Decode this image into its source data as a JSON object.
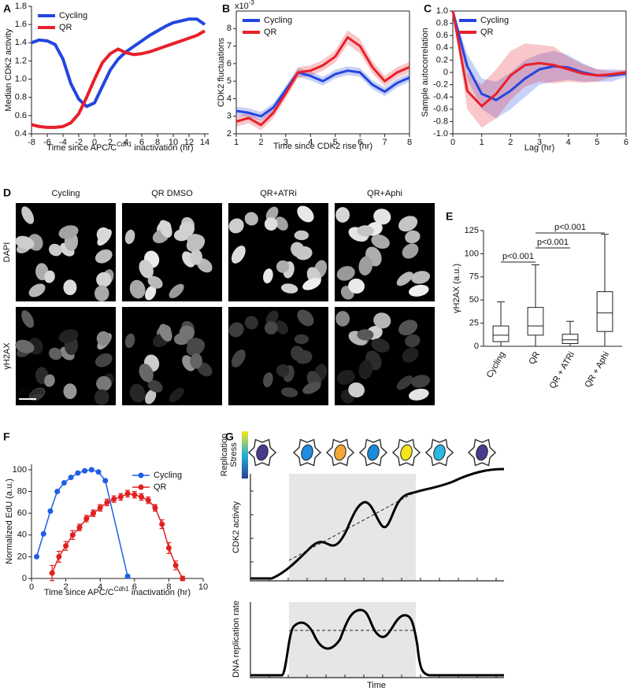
{
  "chart_data": [
    {
      "type": "line",
      "panel": "A",
      "ylabel": "Median CDK2 activity",
      "xlabel": {
        "text": "Time since APC/C",
        "sup": "Cdh1",
        "after": "inactivation (hr)"
      },
      "xlim": [
        -8,
        14.5
      ],
      "ylim": [
        0.4,
        1.8
      ],
      "xticks": [
        -8,
        -6,
        -4,
        -2,
        0,
        2,
        4,
        6,
        8,
        10,
        12,
        14
      ],
      "yticks": [
        0.4,
        0.6,
        0.8,
        {
          "value": 1,
          "label": "1.0"
        },
        1.2,
        1.4,
        1.6,
        1.8
      ],
      "box": false,
      "legend": "upper left",
      "line_width": 4,
      "series": [
        {
          "name": "Cycling",
          "color": "#2346e0",
          "x": [
            -8,
            -7,
            -6,
            -5,
            -4,
            -3,
            -2,
            -1,
            0,
            1,
            2,
            3,
            4,
            5,
            6,
            7,
            8,
            9,
            10,
            11,
            12,
            13,
            14
          ],
          "values": [
            1.4,
            1.43,
            1.42,
            1.38,
            1.22,
            0.95,
            0.78,
            0.7,
            0.74,
            0.92,
            1.1,
            1.22,
            1.3,
            1.36,
            1.42,
            1.48,
            1.53,
            1.58,
            1.62,
            1.64,
            1.66,
            1.66,
            1.6
          ]
        },
        {
          "name": "QR",
          "color": "#e8202a",
          "x": [
            -8,
            -7,
            -6,
            -5,
            -4,
            -3,
            -2,
            -1,
            0,
            1,
            2,
            3,
            4,
            5,
            6,
            7,
            8,
            9,
            10,
            11,
            12,
            13,
            14
          ],
          "values": [
            0.5,
            0.48,
            0.47,
            0.47,
            0.48,
            0.52,
            0.62,
            0.8,
            1.0,
            1.18,
            1.28,
            1.33,
            1.29,
            1.27,
            1.28,
            1.3,
            1.33,
            1.36,
            1.39,
            1.42,
            1.45,
            1.48,
            1.53
          ]
        }
      ]
    },
    {
      "type": "line",
      "panel": "B",
      "ylabel": "CDK2 fluctuations",
      "xlabel": "Time since CDK2 rise (hr)",
      "y_multiplier": {
        "text": "x10",
        "sup": "-3"
      },
      "xlim": [
        1,
        8
      ],
      "ylim": [
        2,
        9
      ],
      "xticks": [
        1,
        2,
        3,
        4,
        5,
        6,
        7,
        8
      ],
      "yticks": [
        2,
        3,
        4,
        5,
        6,
        7,
        8
      ],
      "box": true,
      "legend": "upper left",
      "error_style": "band",
      "line_width": 3,
      "series": [
        {
          "name": "Cycling",
          "color": "#2346e0",
          "x": [
            1,
            1.5,
            2,
            2.5,
            3,
            3.5,
            4,
            4.5,
            5,
            5.5,
            6,
            6.5,
            7,
            7.5,
            8
          ],
          "values": [
            3.3,
            3.2,
            3.0,
            3.5,
            4.5,
            5.5,
            5.3,
            5.0,
            5.4,
            5.6,
            5.5,
            4.8,
            4.4,
            4.9,
            5.2
          ],
          "errors": [
            0.25,
            0.25,
            0.25,
            0.25,
            0.25,
            0.25,
            0.25,
            0.25,
            0.25,
            0.25,
            0.25,
            0.25,
            0.25,
            0.25,
            0.25
          ]
        },
        {
          "name": "QR",
          "color": "#e8202a",
          "x": [
            1,
            1.5,
            2,
            2.5,
            3,
            3.5,
            4,
            4.5,
            5,
            5.5,
            6,
            6.5,
            7,
            7.5,
            8
          ],
          "values": [
            2.7,
            2.9,
            2.5,
            3.2,
            4.3,
            5.5,
            5.6,
            5.9,
            6.4,
            7.5,
            7.0,
            5.8,
            5.0,
            5.5,
            5.8
          ],
          "errors": [
            0.3,
            0.3,
            0.3,
            0.3,
            0.3,
            0.3,
            0.3,
            0.3,
            0.35,
            0.4,
            0.4,
            0.35,
            0.3,
            0.3,
            0.3
          ]
        }
      ]
    },
    {
      "type": "line",
      "panel": "C",
      "ylabel": "Sample autocorrelation",
      "xlabel": "Lag (hr)",
      "xlim": [
        0,
        6
      ],
      "ylim": [
        -1,
        1
      ],
      "xticks": [
        0,
        1,
        2,
        3,
        4,
        5,
        6
      ],
      "yticks": [
        {
          "value": -1,
          "label": "-1.0"
        },
        -0.8,
        -0.6,
        -0.4,
        -0.2,
        0,
        0.2,
        0.4,
        0.6,
        0.8,
        {
          "value": 1,
          "label": "1.0"
        }
      ],
      "box": true,
      "legend": "upper left",
      "error_style": "band",
      "line_width": 3,
      "series": [
        {
          "name": "Cycling",
          "color": "#2346e0",
          "x": [
            0,
            0.5,
            1,
            1.5,
            2,
            2.5,
            3,
            3.5,
            4,
            4.5,
            5,
            5.5,
            6
          ],
          "values": [
            1.0,
            0.1,
            -0.35,
            -0.45,
            -0.3,
            -0.1,
            0.05,
            0.1,
            0.08,
            0.0,
            -0.05,
            -0.05,
            -0.02
          ],
          "errors": [
            0,
            0.2,
            0.25,
            0.3,
            0.3,
            0.3,
            0.25,
            0.25,
            0.2,
            0.15,
            0.1,
            0.1,
            0.05
          ]
        },
        {
          "name": "QR",
          "color": "#e8202a",
          "x": [
            0,
            0.5,
            1,
            1.5,
            2,
            2.5,
            3,
            3.5,
            4,
            4.5,
            5,
            5.5,
            6
          ],
          "values": [
            1.0,
            -0.3,
            -0.55,
            -0.35,
            -0.05,
            0.12,
            0.15,
            0.12,
            0.05,
            -0.02,
            -0.05,
            -0.03,
            0.0
          ],
          "errors": [
            0,
            0.3,
            0.35,
            0.4,
            0.4,
            0.35,
            0.3,
            0.3,
            0.2,
            0.15,
            0.1,
            0.05,
            0.05
          ]
        }
      ]
    },
    {
      "type": "image-grid",
      "panel": "D",
      "columns": [
        "Cycling",
        "QR DMSO",
        "QR+ATRi",
        "QR+Aphi"
      ],
      "rows": [
        "DAPI",
        "γH2AX"
      ],
      "scale_bar": "20 μm"
    },
    {
      "type": "box",
      "panel": "E",
      "ylabel": "γH2AX (a.u.)",
      "categories": [
        "Cycling",
        "QR",
        "QR + ATRi",
        "QR + Aphi"
      ],
      "ylim": [
        0,
        125
      ],
      "yticks": [
        0,
        25,
        50,
        75,
        100,
        125
      ],
      "boxes": {
        "min": [
          0,
          0,
          0,
          0
        ],
        "q1": [
          5,
          12,
          3,
          16
        ],
        "median": [
          12,
          22,
          7,
          36
        ],
        "q3": [
          22,
          42,
          13,
          59
        ],
        "max": [
          48,
          88,
          27,
          121
        ]
      },
      "annotations": [
        {
          "text": "p<0.001",
          "from": 0,
          "to": 1
        },
        {
          "text": "p<0.001",
          "from": 1,
          "to": 2
        },
        {
          "text": "p<0.001",
          "from": 1,
          "to": 3
        }
      ]
    },
    {
      "type": "line",
      "panel": "F",
      "ylabel": "Normalized EdU (a.u.)",
      "xlabel": {
        "text": "Time since APC/C",
        "sup": "Cdh1",
        "after": "inactivation (hr)"
      },
      "xlim": [
        0,
        10
      ],
      "ylim": [
        0,
        105
      ],
      "xticks": [
        0,
        2,
        4,
        6,
        8,
        10
      ],
      "yticks": [
        0,
        20,
        40,
        60,
        80,
        100
      ],
      "box": false,
      "legend": "upper right",
      "error_style": "bars",
      "markers": true,
      "line_width": 1.5,
      "series": [
        {
          "name": "Cycling",
          "color": "#1f5fe6",
          "x": [
            0.3,
            0.7,
            1.1,
            1.5,
            1.9,
            2.3,
            2.7,
            3.1,
            3.5,
            3.9,
            4.3,
            5.6
          ],
          "values": [
            20,
            41,
            62,
            80,
            88,
            93,
            97,
            99,
            100,
            98,
            90,
            2
          ],
          "errors": [
            1,
            1,
            1,
            1,
            1,
            1,
            1,
            1,
            1,
            1,
            1,
            1
          ]
        },
        {
          "name": "QR",
          "color": "#e02020",
          "x": [
            1.2,
            1.6,
            2.0,
            2.4,
            2.8,
            3.2,
            3.6,
            4.0,
            4.4,
            4.8,
            5.2,
            5.6,
            6.0,
            6.4,
            6.8,
            7.2,
            7.6,
            8.0,
            8.4,
            8.8
          ],
          "values": [
            5,
            20,
            30,
            40,
            47,
            55,
            60,
            65,
            70,
            73,
            75,
            78,
            77,
            75,
            72,
            65,
            50,
            28,
            12,
            0
          ],
          "errors": [
            7,
            5,
            4,
            4,
            3,
            3,
            3,
            3,
            3,
            3,
            3,
            3,
            3,
            3,
            3,
            3,
            4,
            5,
            4,
            2
          ]
        }
      ]
    },
    {
      "type": "schematic",
      "panel": "G",
      "legend_title": [
        "Replication",
        "Stress"
      ],
      "ylabels": [
        "CDK2 activity",
        "DNA replication rate"
      ],
      "xlabel": "Time"
    }
  ]
}
